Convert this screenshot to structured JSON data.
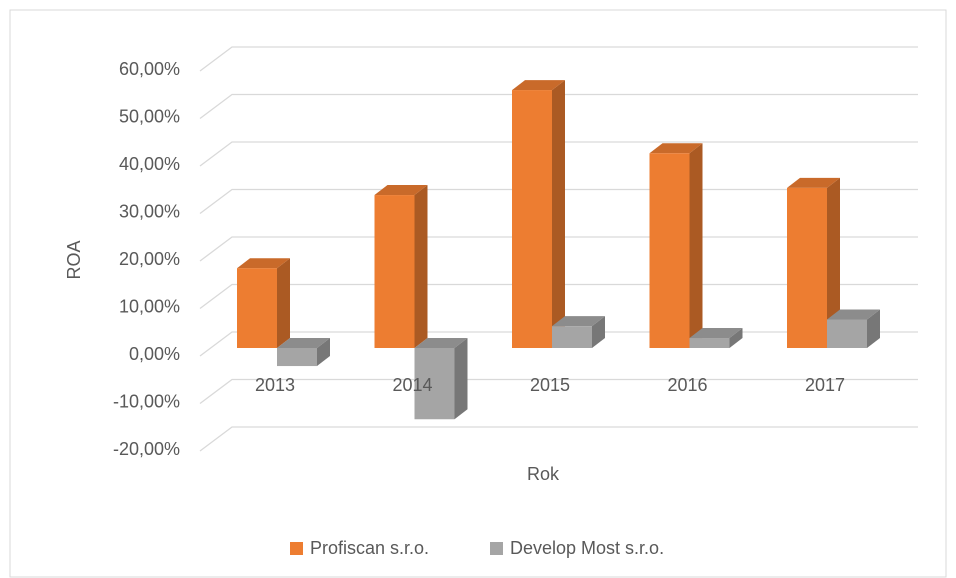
{
  "chart_data": {
    "type": "bar3d",
    "categories": [
      "2013",
      "2014",
      "2015",
      "2016",
      "2017"
    ],
    "series": [
      {
        "name": "Profiscan s.r.o.",
        "color": "#ed7d31",
        "values": [
          16.8,
          32.2,
          54.3,
          41.0,
          33.7
        ]
      },
      {
        "name": "Develop Most s.r.o.",
        "color": "#a5a5a5",
        "values": [
          -3.8,
          -15.0,
          4.6,
          2.1,
          6.0
        ]
      }
    ],
    "ylim": [
      -20,
      60
    ],
    "yticks": [
      {
        "value": -20,
        "label": "-20,00%"
      },
      {
        "value": -10,
        "label": "-10,00%"
      },
      {
        "value": 0,
        "label": "0,00%"
      },
      {
        "value": 10,
        "label": "10,00%"
      },
      {
        "value": 20,
        "label": "20,00%"
      },
      {
        "value": 30,
        "label": "30,00%"
      },
      {
        "value": 40,
        "label": "40,00%"
      },
      {
        "value": 50,
        "label": "50,00%"
      },
      {
        "value": 60,
        "label": "60,00%"
      }
    ],
    "ylabel": "ROA",
    "xlabel": "Rok",
    "grid": true,
    "legend": "bottom"
  }
}
